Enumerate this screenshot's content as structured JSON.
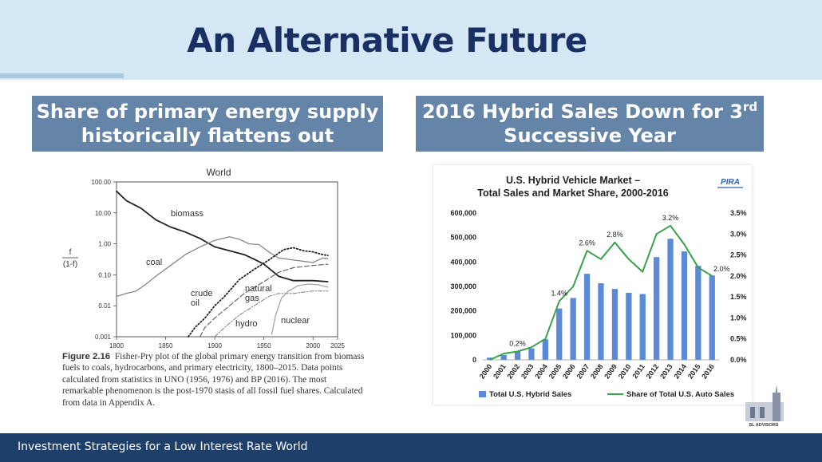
{
  "slide": {
    "title": "An Alternative Future",
    "footer": "Investment Strategies for a Low Interest Rate World",
    "logo_text": "SL ADVISORS"
  },
  "left_section": {
    "heading_line1": "Share of primary energy supply",
    "heading_line2": "historically flattens out"
  },
  "right_section": {
    "heading_line1_pre": "2016 Hybrid Sales Down for 3",
    "heading_line1_sup": "rd",
    "heading_line2": "Successive Year"
  },
  "figure_caption": {
    "label": "Figure 2.16",
    "text": "Fisher-Pry plot of the global primary energy transition from biomass fuels to coals, hydrocarbons, and primary electricity, 1800–2015. Data points calculated from statistics in UNO (1956, 1976) and BP (2016). The most remarkable phenomenon is the post-1970 stasis of all fossil fuel shares. Calculated from data in Appendix A."
  },
  "colors": {
    "top_band": "#d3e7f5",
    "title": "#1a2f63",
    "section_box": "#6585a8",
    "footer": "#1f3f6b",
    "bars": "#5b8bd6",
    "share_line": "#3aa04a",
    "pira": "#2e5fb0"
  },
  "chart_data": [
    {
      "type": "line",
      "title": "World",
      "ylabel": "f / (1-f)",
      "ylabel_top": "f",
      "ylabel_bottom": "(1-f)",
      "yscale": "log",
      "ylim": [
        0.001,
        100
      ],
      "y_tick_labels": [
        "100.00",
        "10.00",
        "1.00",
        "0.10",
        "0.01",
        "0.001"
      ],
      "xlim": [
        1800,
        2025
      ],
      "x_tick_labels": [
        "1800",
        "1850",
        "1900",
        "1950",
        "2000",
        "2025"
      ],
      "series": [
        {
          "name": "biomass",
          "style": "solid",
          "points": [
            [
              1800,
              50
            ],
            [
              1810,
              25
            ],
            [
              1825,
              14
            ],
            [
              1840,
              6
            ],
            [
              1855,
              3.5
            ],
            [
              1870,
              2.4
            ],
            [
              1885,
              1.5
            ],
            [
              1900,
              0.8
            ],
            [
              1915,
              0.6
            ],
            [
              1930,
              0.45
            ],
            [
              1940,
              0.32
            ],
            [
              1950,
              0.22
            ],
            [
              1965,
              0.09
            ],
            [
              1980,
              0.065
            ],
            [
              2000,
              0.065
            ],
            [
              2015,
              0.06
            ]
          ]
        },
        {
          "name": "coal",
          "style": "solid",
          "points": [
            [
              1800,
              0.02
            ],
            [
              1810,
              0.025
            ],
            [
              1820,
              0.03
            ],
            [
              1830,
              0.05
            ],
            [
              1840,
              0.09
            ],
            [
              1855,
              0.2
            ],
            [
              1870,
              0.45
            ],
            [
              1885,
              0.8
            ],
            [
              1900,
              1.3
            ],
            [
              1915,
              1.7
            ],
            [
              1925,
              1.4
            ],
            [
              1935,
              1.0
            ],
            [
              1945,
              0.95
            ],
            [
              1955,
              0.55
            ],
            [
              1965,
              0.35
            ],
            [
              1980,
              0.3
            ],
            [
              2000,
              0.25
            ],
            [
              2010,
              0.35
            ],
            [
              2015,
              0.33
            ]
          ]
        },
        {
          "name": "crude oil",
          "style": "dotted",
          "points": [
            [
              1873,
              0.001
            ],
            [
              1880,
              0.002
            ],
            [
              1890,
              0.004
            ],
            [
              1900,
              0.01
            ],
            [
              1910,
              0.02
            ],
            [
              1925,
              0.07
            ],
            [
              1940,
              0.15
            ],
            [
              1955,
              0.3
            ],
            [
              1970,
              0.65
            ],
            [
              1980,
              0.75
            ],
            [
              1990,
              0.6
            ],
            [
              2000,
              0.55
            ],
            [
              2010,
              0.45
            ],
            [
              2015,
              0.42
            ]
          ]
        },
        {
          "name": "natural gas",
          "style": "dashed",
          "points": [
            [
              1885,
              0.001
            ],
            [
              1890,
              0.002
            ],
            [
              1900,
              0.004
            ],
            [
              1915,
              0.01
            ],
            [
              1930,
              0.025
            ],
            [
              1950,
              0.06
            ],
            [
              1965,
              0.12
            ],
            [
              1980,
              0.17
            ],
            [
              2000,
              0.2
            ],
            [
              2015,
              0.22
            ]
          ]
        },
        {
          "name": "hydro",
          "style": "dash-dot",
          "points": [
            [
              1900,
              0.001
            ],
            [
              1910,
              0.002
            ],
            [
              1925,
              0.005
            ],
            [
              1940,
              0.01
            ],
            [
              1955,
              0.02
            ],
            [
              1965,
              0.025
            ],
            [
              1980,
              0.025
            ],
            [
              2000,
              0.03
            ],
            [
              2015,
              0.03
            ]
          ]
        },
        {
          "name": "nuclear",
          "style": "solid-light",
          "points": [
            [
              1958,
              0.0012
            ],
            [
              1962,
              0.005
            ],
            [
              1968,
              0.018
            ],
            [
              1975,
              0.03
            ],
            [
              1985,
              0.045
            ],
            [
              1995,
              0.05
            ],
            [
              2005,
              0.048
            ],
            [
              2015,
              0.04
            ]
          ]
        }
      ],
      "annotations": [
        "biomass",
        "coal",
        "crude",
        "oil",
        "natural",
        "gas",
        "hydro",
        "nuclear"
      ]
    },
    {
      "type": "bar",
      "title": "U.S. Hybrid Vehicle Market –",
      "subtitle": "Total Sales and Market Share, 2000-2016",
      "source_badge": "PIRA",
      "categories": [
        "2000",
        "2001",
        "2002",
        "2003",
        "2004",
        "2005",
        "2006",
        "2007",
        "2008",
        "2009",
        "2010",
        "2011",
        "2012",
        "2013",
        "2014",
        "2015",
        "2016"
      ],
      "series": [
        {
          "name": "Total U.S. Hybrid Sales",
          "type": "bar",
          "axis": "left",
          "values": [
            9000,
            20000,
            35000,
            47000,
            84000,
            210000,
            253000,
            352000,
            313000,
            290000,
            274000,
            269000,
            420000,
            495000,
            443000,
            384000,
            345000
          ]
        },
        {
          "name": "Share of Total U.S. Auto Sales",
          "type": "line",
          "axis": "right",
          "values": [
            0.0,
            0.15,
            0.2,
            0.3,
            0.5,
            1.4,
            1.75,
            2.6,
            2.4,
            2.8,
            2.4,
            2.1,
            3.0,
            3.2,
            2.75,
            2.2,
            2.0
          ]
        }
      ],
      "y_left": {
        "ylim": [
          0,
          600000
        ],
        "tick_labels": [
          "0",
          "100,000",
          "200,000",
          "300,000",
          "400,000",
          "500,000",
          "600,000"
        ]
      },
      "y_right": {
        "ylim": [
          0.0,
          3.5
        ],
        "tick_labels": [
          "0.0%",
          "0.5%",
          "1.0%",
          "1.5%",
          "2.0%",
          "2.5%",
          "3.0%",
          "3.5%"
        ]
      },
      "data_labels": [
        {
          "category": "2002",
          "text": "0.2%"
        },
        {
          "category": "2005",
          "text": "1.4%"
        },
        {
          "category": "2007",
          "text": "2.6%"
        },
        {
          "category": "2009",
          "text": "2.8%"
        },
        {
          "category": "2013",
          "text": "3.2%"
        },
        {
          "category": "2016",
          "text": "2.0%"
        }
      ],
      "legend": {
        "position": "bottom",
        "items": [
          "Total U.S. Hybrid Sales",
          "Share of Total U.S. Auto Sales"
        ]
      },
      "grid": false
    }
  ]
}
